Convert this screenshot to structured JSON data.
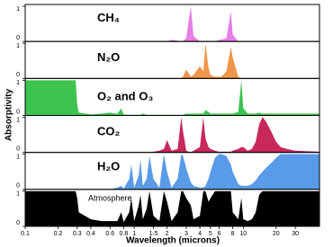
{
  "chart_data": {
    "type": "area",
    "xlabel": "Wavelength (microns)",
    "ylabel": "Absorptivity",
    "xscale": "log",
    "xlim": [
      0.1,
      50
    ],
    "xticks": [
      0.1,
      0.2,
      0.3,
      0.4,
      0.6,
      0.8,
      1,
      1.5,
      2,
      3,
      4,
      5,
      6,
      8,
      10,
      20,
      30
    ],
    "ylim": [
      0,
      1
    ],
    "yticks": [
      0,
      1
    ],
    "x": [
      0.1,
      0.2,
      0.29,
      0.3,
      0.31,
      0.4,
      0.5,
      0.6,
      0.7,
      0.76,
      0.8,
      0.9,
      0.94,
      1.0,
      1.1,
      1.14,
      1.2,
      1.3,
      1.38,
      1.5,
      1.7,
      1.87,
      2.0,
      2.2,
      2.5,
      2.7,
      2.8,
      3.0,
      3.3,
      3.5,
      4.0,
      4.3,
      4.5,
      4.8,
      5.0,
      5.5,
      6.0,
      6.3,
      7.0,
      7.7,
      8.0,
      9.0,
      9.6,
      10,
      11,
      12,
      13,
      14,
      15,
      16,
      18,
      20,
      22,
      25,
      30,
      50
    ],
    "series": [
      {
        "name": "CH₄",
        "color": "#e67ee6",
        "values": [
          0,
          0,
          0,
          0,
          0,
          0,
          0,
          0,
          0,
          0,
          0,
          0,
          0,
          0,
          0,
          0,
          0,
          0,
          0,
          0,
          0,
          0,
          0,
          0.05,
          0.02,
          0,
          0,
          0.1,
          1,
          0.15,
          0,
          0,
          0,
          0,
          0,
          0,
          0.05,
          0.05,
          0.1,
          0.85,
          0.2,
          0,
          0,
          0,
          0,
          0,
          0,
          0,
          0,
          0,
          0,
          0,
          0,
          0,
          0,
          0
        ]
      },
      {
        "name": "N₂O",
        "color": "#f0964b",
        "values": [
          0,
          0,
          0,
          0,
          0,
          0,
          0,
          0,
          0,
          0,
          0,
          0,
          0,
          0,
          0,
          0,
          0,
          0,
          0,
          0,
          0,
          0,
          0,
          0,
          0,
          0,
          0.05,
          0.25,
          0.05,
          0.1,
          0.35,
          0.2,
          1,
          0.3,
          0.1,
          0.05,
          0.05,
          0.05,
          0.2,
          0.9,
          0.6,
          0.05,
          0,
          0,
          0,
          0,
          0,
          0,
          0,
          0,
          0,
          0,
          0,
          0,
          0,
          0
        ]
      },
      {
        "name": "O₂ and O₃",
        "color": "#3cc350",
        "values": [
          1,
          1,
          1,
          0.3,
          0.08,
          0.03,
          0.05,
          0.08,
          0.04,
          0.2,
          0.03,
          0.02,
          0.02,
          0.02,
          0.02,
          0.02,
          0.05,
          0.02,
          0.02,
          0.02,
          0.02,
          0.02,
          0.02,
          0.02,
          0.02,
          0.02,
          0.02,
          0.05,
          0.05,
          0.05,
          0.05,
          0.05,
          0.15,
          0.1,
          0.05,
          0.05,
          0.05,
          0.05,
          0.05,
          0.05,
          0.05,
          0.1,
          1,
          0.2,
          0.05,
          0.05,
          0.05,
          0.08,
          0.05,
          0.05,
          0.05,
          0.05,
          0.05,
          0.05,
          0.05,
          0.05
        ]
      },
      {
        "name": "CO₂",
        "color": "#c8285a",
        "values": [
          0,
          0,
          0,
          0,
          0,
          0,
          0,
          0,
          0,
          0,
          0,
          0,
          0,
          0,
          0,
          0,
          0,
          0,
          0,
          0.02,
          0.05,
          0.1,
          0.35,
          0.05,
          0.1,
          1,
          0.6,
          0.05,
          0,
          0.05,
          0.15,
          1,
          0.4,
          0.15,
          0.1,
          0.05,
          0.02,
          0.02,
          0.02,
          0.02,
          0.05,
          0.1,
          0.15,
          0.15,
          0.05,
          0.1,
          0.3,
          0.8,
          1,
          0.9,
          0.6,
          0.3,
          0.15,
          0.1,
          0.05,
          0.02
        ]
      },
      {
        "name": "H₂O",
        "color": "#5a9be8",
        "values": [
          0,
          0,
          0,
          0,
          0,
          0,
          0,
          0,
          0.05,
          0.1,
          0.02,
          0.3,
          0.7,
          0.05,
          0.4,
          0.85,
          0.1,
          0.3,
          0.95,
          0.3,
          0.05,
          1,
          0.5,
          0.05,
          0.3,
          1,
          0.95,
          0.6,
          0.2,
          0.1,
          0.05,
          0.05,
          0.1,
          0.3,
          0.5,
          0.9,
          1,
          1,
          0.95,
          0.7,
          0.5,
          0.15,
          0.1,
          0.1,
          0.1,
          0.15,
          0.25,
          0.4,
          0.5,
          0.6,
          0.75,
          0.9,
          1,
          1,
          1,
          1
        ]
      },
      {
        "name": "Atmosphere",
        "color": "#000000",
        "values": [
          1,
          1,
          1,
          0.8,
          0.4,
          0.2,
          0.15,
          0.15,
          0.15,
          0.4,
          0.12,
          0.4,
          0.8,
          0.15,
          0.6,
          0.9,
          0.2,
          0.5,
          1,
          0.3,
          0.15,
          1,
          0.7,
          0.15,
          0.4,
          1,
          1,
          0.8,
          0.6,
          0.2,
          0.3,
          1,
          1,
          0.7,
          0.8,
          1,
          1,
          1,
          1,
          1,
          0.4,
          0.2,
          0.8,
          0.2,
          0.15,
          0.2,
          0.4,
          0.9,
          1,
          1,
          1,
          1,
          1,
          1,
          1,
          1
        ]
      }
    ]
  }
}
